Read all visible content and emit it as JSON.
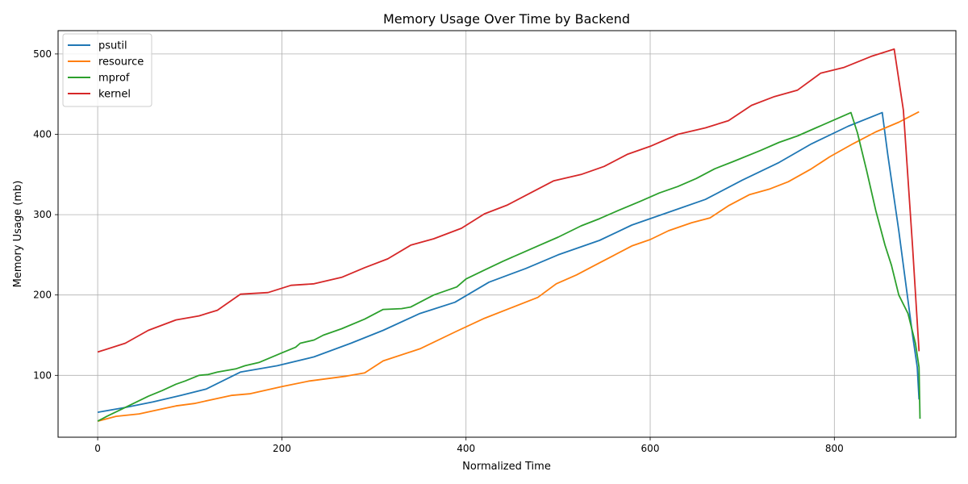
{
  "chart_data": {
    "type": "line",
    "title": "Memory Usage Over Time by Backend",
    "xlabel": "Normalized Time",
    "ylabel": "Memory Usage (mb)",
    "xlim": [
      -43,
      932
    ],
    "ylim": [
      23,
      529
    ],
    "xticks": [
      0,
      200,
      400,
      600,
      800
    ],
    "yticks": [
      100,
      200,
      300,
      400,
      500
    ],
    "grid": true,
    "legend_position": "top-left",
    "series": [
      {
        "name": "psutil",
        "color": "#1f77b4",
        "points": [
          [
            0,
            54
          ],
          [
            30,
            60
          ],
          [
            60,
            67
          ],
          [
            90,
            75
          ],
          [
            118,
            83
          ],
          [
            155,
            104
          ],
          [
            195,
            112
          ],
          [
            235,
            123
          ],
          [
            275,
            140
          ],
          [
            310,
            156
          ],
          [
            350,
            177
          ],
          [
            388,
            191
          ],
          [
            425,
            216
          ],
          [
            465,
            233
          ],
          [
            500,
            250
          ],
          [
            545,
            268
          ],
          [
            580,
            287
          ],
          [
            620,
            303
          ],
          [
            660,
            319
          ],
          [
            700,
            343
          ],
          [
            740,
            365
          ],
          [
            775,
            388
          ],
          [
            815,
            410
          ],
          [
            852,
            427
          ],
          [
            858,
            375
          ],
          [
            870,
            280
          ],
          [
            885,
            150
          ],
          [
            890,
            110
          ],
          [
            892,
            70
          ]
        ]
      },
      {
        "name": "resource",
        "color": "#ff7f0e",
        "points": [
          [
            0,
            43
          ],
          [
            20,
            49
          ],
          [
            45,
            52
          ],
          [
            85,
            62
          ],
          [
            105,
            65
          ],
          [
            145,
            75
          ],
          [
            165,
            77
          ],
          [
            200,
            86
          ],
          [
            230,
            93
          ],
          [
            270,
            99
          ],
          [
            290,
            103
          ],
          [
            310,
            118
          ],
          [
            350,
            133
          ],
          [
            390,
            155
          ],
          [
            420,
            171
          ],
          [
            478,
            197
          ],
          [
            498,
            214
          ],
          [
            520,
            225
          ],
          [
            540,
            237
          ],
          [
            560,
            249
          ],
          [
            580,
            261
          ],
          [
            600,
            269
          ],
          [
            620,
            280
          ],
          [
            645,
            290
          ],
          [
            665,
            296
          ],
          [
            685,
            311
          ],
          [
            708,
            325
          ],
          [
            730,
            332
          ],
          [
            750,
            341
          ],
          [
            775,
            357
          ],
          [
            795,
            372
          ],
          [
            820,
            388
          ],
          [
            845,
            403
          ],
          [
            870,
            415
          ],
          [
            892,
            428
          ]
        ]
      },
      {
        "name": "mprof",
        "color": "#2ca02c",
        "points": [
          [
            0,
            43
          ],
          [
            10,
            49
          ],
          [
            30,
            60
          ],
          [
            55,
            74
          ],
          [
            70,
            81
          ],
          [
            85,
            89
          ],
          [
            95,
            93
          ],
          [
            110,
            100
          ],
          [
            120,
            101
          ],
          [
            130,
            104
          ],
          [
            150,
            108
          ],
          [
            160,
            112
          ],
          [
            175,
            116
          ],
          [
            200,
            128
          ],
          [
            215,
            135
          ],
          [
            220,
            140
          ],
          [
            235,
            144
          ],
          [
            245,
            150
          ],
          [
            265,
            158
          ],
          [
            290,
            170
          ],
          [
            310,
            182
          ],
          [
            330,
            183
          ],
          [
            340,
            185
          ],
          [
            365,
            200
          ],
          [
            390,
            210
          ],
          [
            400,
            220
          ],
          [
            420,
            231
          ],
          [
            440,
            242
          ],
          [
            460,
            252
          ],
          [
            480,
            262
          ],
          [
            500,
            272
          ],
          [
            525,
            286
          ],
          [
            545,
            295
          ],
          [
            565,
            305
          ],
          [
            590,
            317
          ],
          [
            610,
            327
          ],
          [
            630,
            335
          ],
          [
            650,
            345
          ],
          [
            670,
            357
          ],
          [
            690,
            366
          ],
          [
            720,
            380
          ],
          [
            740,
            390
          ],
          [
            760,
            398
          ],
          [
            780,
            408
          ],
          [
            800,
            418
          ],
          [
            818,
            427
          ],
          [
            825,
            402
          ],
          [
            835,
            355
          ],
          [
            845,
            305
          ],
          [
            855,
            262
          ],
          [
            862,
            237
          ],
          [
            870,
            200
          ],
          [
            880,
            177
          ],
          [
            888,
            140
          ],
          [
            892,
            110
          ],
          [
            893,
            46
          ]
        ]
      },
      {
        "name": "kernel",
        "color": "#d62728",
        "points": [
          [
            0,
            129
          ],
          [
            30,
            140
          ],
          [
            55,
            156
          ],
          [
            85,
            169
          ],
          [
            110,
            174
          ],
          [
            130,
            181
          ],
          [
            155,
            201
          ],
          [
            185,
            203
          ],
          [
            210,
            212
          ],
          [
            235,
            214
          ],
          [
            265,
            222
          ],
          [
            290,
            234
          ],
          [
            315,
            245
          ],
          [
            340,
            262
          ],
          [
            365,
            270
          ],
          [
            395,
            283
          ],
          [
            420,
            301
          ],
          [
            445,
            312
          ],
          [
            470,
            327
          ],
          [
            495,
            342
          ],
          [
            525,
            350
          ],
          [
            550,
            360
          ],
          [
            575,
            375
          ],
          [
            600,
            385
          ],
          [
            630,
            400
          ],
          [
            660,
            408
          ],
          [
            685,
            417
          ],
          [
            710,
            436
          ],
          [
            735,
            447
          ],
          [
            760,
            455
          ],
          [
            785,
            476
          ],
          [
            810,
            483
          ],
          [
            840,
            497
          ],
          [
            865,
            506
          ],
          [
            875,
            430
          ],
          [
            885,
            260
          ],
          [
            892,
            130
          ]
        ]
      }
    ]
  }
}
